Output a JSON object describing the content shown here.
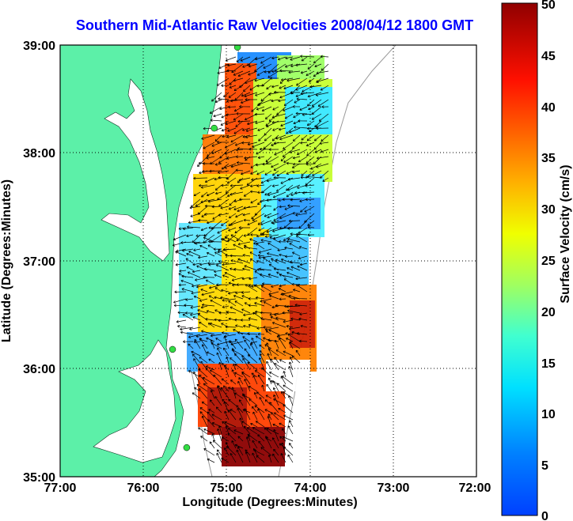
{
  "title": "Southern Mid-Atlantic Raw Velocities 2008/04/12 1800 GMT",
  "x_axis": {
    "label": "Longitude (Degrees:Minutes)",
    "ticks": [
      "77:00",
      "76:00",
      "75:00",
      "74:00",
      "73:00",
      "72:00"
    ]
  },
  "y_axis": {
    "label": "Latitude (Degrees:Minutes)",
    "ticks": [
      "39:00",
      "38:00",
      "37:00",
      "36:00",
      "35:00"
    ]
  },
  "colorbar": {
    "label": "Surface Velocity (cm/s)",
    "ticks": [
      "50",
      "45",
      "40",
      "35",
      "30",
      "25",
      "20",
      "15",
      "10",
      "5",
      "0"
    ],
    "colormap": "jet",
    "range": [
      0,
      50
    ]
  },
  "colors": {
    "land": "#5cf0a8",
    "water": "#ffffff",
    "title": "#0000ff",
    "site_marker": "#33dd44"
  },
  "grid": "dotted",
  "extent": {
    "lon": [
      -77,
      -72
    ],
    "lat": [
      35,
      39
    ]
  },
  "stations": [
    {
      "lon": -74.87,
      "lat": 38.98
    },
    {
      "lon": -75.15,
      "lat": 38.23
    },
    {
      "lon": -75.65,
      "lat": 36.18
    },
    {
      "lon": -75.48,
      "lat": 35.27
    }
  ]
}
